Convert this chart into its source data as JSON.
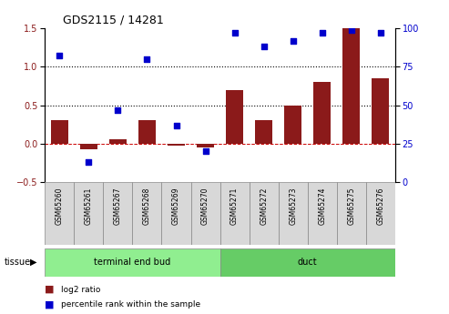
{
  "title": "GDS2115 / 14281",
  "samples": [
    "GSM65260",
    "GSM65261",
    "GSM65267",
    "GSM65268",
    "GSM65269",
    "GSM65270",
    "GSM65271",
    "GSM65272",
    "GSM65273",
    "GSM65274",
    "GSM65275",
    "GSM65276"
  ],
  "log2_ratio": [
    0.3,
    -0.07,
    0.06,
    0.3,
    -0.02,
    -0.05,
    0.7,
    0.3,
    0.5,
    0.8,
    1.5,
    0.85
  ],
  "percentile_rank": [
    82,
    13,
    47,
    80,
    37,
    20,
    97,
    88,
    92,
    97,
    99,
    97
  ],
  "tissue_groups": [
    {
      "label": "terminal end bud",
      "start": 0,
      "end": 6,
      "color": "#90EE90"
    },
    {
      "label": "duct",
      "start": 6,
      "end": 12,
      "color": "#66CC66"
    }
  ],
  "ylim_left": [
    -0.5,
    1.5
  ],
  "ylim_right": [
    0,
    100
  ],
  "yticks_left": [
    -0.5,
    0.0,
    0.5,
    1.0,
    1.5
  ],
  "yticks_right": [
    0,
    25,
    50,
    75,
    100
  ],
  "bar_color": "#8B1A1A",
  "dot_color": "#0000CC",
  "hline_color": "#CC0000",
  "bg_color": "white",
  "title_fontsize": 9,
  "tick_fontsize": 7,
  "label_fontsize": 7
}
